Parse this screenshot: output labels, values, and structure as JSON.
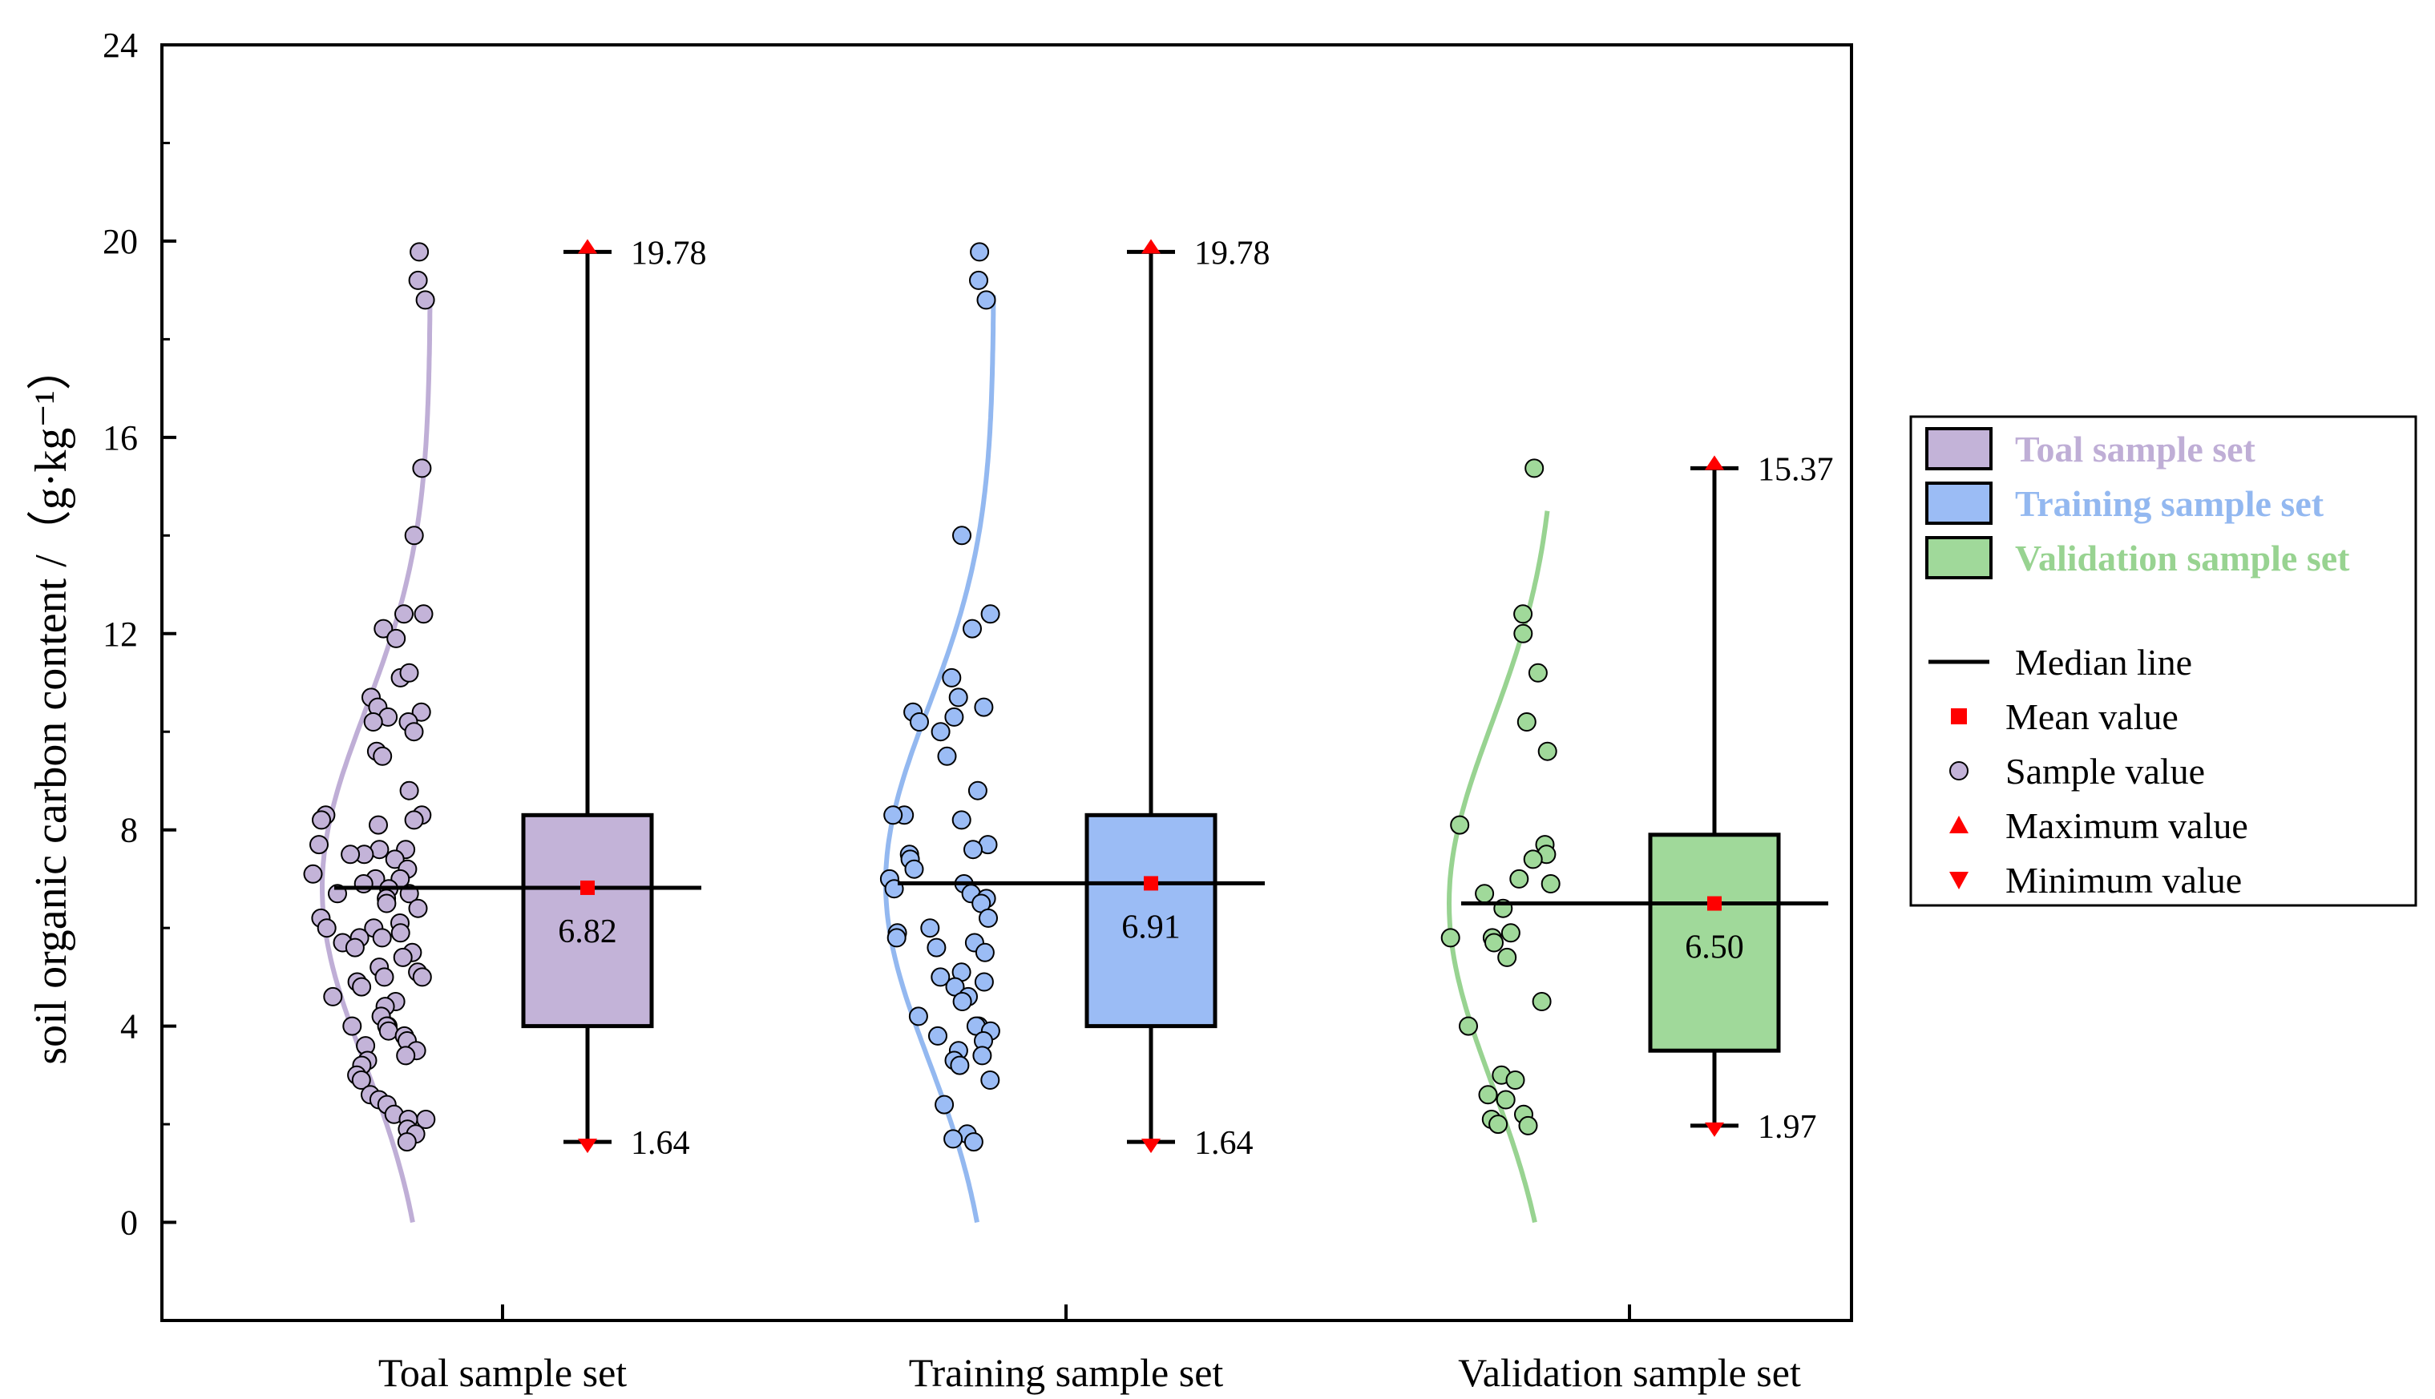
{
  "chart_data": {
    "type": "box",
    "ylabel": "soil organic carbon content /（g·kg⁻¹）",
    "ylim": [
      -2,
      24
    ],
    "yticks": [
      0,
      4,
      8,
      12,
      16,
      20,
      24
    ],
    "ytick_labels": [
      "0",
      "4",
      "8",
      "12",
      "16",
      "20",
      "24"
    ],
    "categories": [
      "Toal sample set",
      "Training sample set",
      "Validation sample set"
    ],
    "series": [
      {
        "name": "Toal sample set",
        "color": "#c3b3d8",
        "curve_color": "#bfaed6",
        "q1": 4.0,
        "median": 6.82,
        "q3": 8.3,
        "mean": 6.82,
        "min": 1.64,
        "max": 19.78,
        "min_label": "1.64",
        "max_label": "19.78",
        "mean_label": "6.82",
        "samples": [
          19.78,
          19.2,
          18.8,
          15.37,
          14.0,
          12.4,
          12.4,
          12.1,
          11.9,
          11.1,
          11.2,
          10.7,
          10.5,
          10.4,
          10.3,
          10.2,
          10.2,
          10.0,
          9.6,
          9.5,
          8.8,
          8.3,
          8.3,
          8.2,
          8.2,
          8.1,
          7.7,
          7.6,
          7.6,
          7.5,
          7.5,
          7.4,
          7.2,
          7.1,
          7.0,
          7.0,
          6.9,
          6.8,
          6.7,
          6.7,
          6.6,
          6.5,
          6.4,
          6.2,
          6.1,
          6.0,
          6.0,
          5.9,
          5.8,
          5.8,
          5.7,
          5.6,
          5.5,
          5.4,
          5.2,
          5.1,
          5.0,
          5.0,
          4.9,
          4.8,
          4.6,
          4.5,
          4.4,
          4.2,
          4.0,
          4.0,
          4.0,
          3.9,
          3.8,
          3.7,
          3.6,
          3.5,
          3.4,
          3.3,
          3.2,
          3.0,
          2.9,
          2.6,
          2.5,
          2.4,
          2.2,
          2.1,
          2.1,
          1.9,
          1.8,
          1.64
        ]
      },
      {
        "name": "Training sample set",
        "color": "#9bbcf5",
        "curve_color": "#93b8f0",
        "q1": 4.0,
        "median": 6.91,
        "q3": 8.3,
        "mean": 6.91,
        "min": 1.64,
        "max": 19.78,
        "min_label": "1.64",
        "max_label": "19.78",
        "mean_label": "6.91",
        "samples": [
          19.78,
          19.2,
          18.8,
          14.0,
          12.4,
          12.1,
          11.1,
          10.7,
          10.5,
          10.4,
          10.3,
          10.2,
          10.0,
          9.5,
          8.8,
          8.3,
          8.3,
          8.2,
          7.7,
          7.6,
          7.5,
          7.4,
          7.2,
          7.0,
          6.9,
          6.8,
          6.7,
          6.6,
          6.5,
          6.2,
          6.0,
          5.9,
          5.8,
          5.7,
          5.6,
          5.5,
          5.1,
          5.0,
          4.9,
          4.8,
          4.6,
          4.5,
          4.2,
          4.0,
          4.0,
          3.9,
          3.8,
          3.7,
          3.5,
          3.4,
          3.3,
          3.2,
          2.9,
          2.4,
          1.8,
          1.7,
          1.64
        ]
      },
      {
        "name": "Validation sample set",
        "color": "#a0d99a",
        "curve_color": "#98d391",
        "q1": 3.5,
        "median": 6.5,
        "q3": 7.9,
        "mean": 6.5,
        "min": 1.97,
        "max": 15.37,
        "min_label": "1.97",
        "max_label": "15.37",
        "mean_label": "6.50",
        "samples": [
          15.37,
          12.4,
          12.0,
          11.2,
          10.2,
          9.6,
          8.1,
          7.7,
          7.5,
          7.4,
          7.0,
          6.9,
          6.7,
          6.4,
          5.9,
          5.8,
          5.8,
          5.7,
          5.4,
          4.5,
          4.0,
          3.0,
          2.9,
          2.6,
          2.5,
          2.2,
          2.1,
          2.0,
          1.97
        ]
      }
    ],
    "legend": {
      "position": "right",
      "series_items": [
        "Toal sample set",
        "Training sample set",
        "Validation sample set"
      ],
      "symbol_items": [
        {
          "symbol": "line",
          "label": "Median line"
        },
        {
          "symbol": "square",
          "label": "Mean value"
        },
        {
          "symbol": "circle",
          "label": "Sample value"
        },
        {
          "symbol": "triangle-up",
          "label": "Maximum value"
        },
        {
          "symbol": "triangle-down",
          "label": "Minimum value"
        }
      ]
    },
    "colors": {
      "mean_marker": "#ff0000",
      "extreme_marker": "#ff0000",
      "axis": "#000000"
    }
  }
}
